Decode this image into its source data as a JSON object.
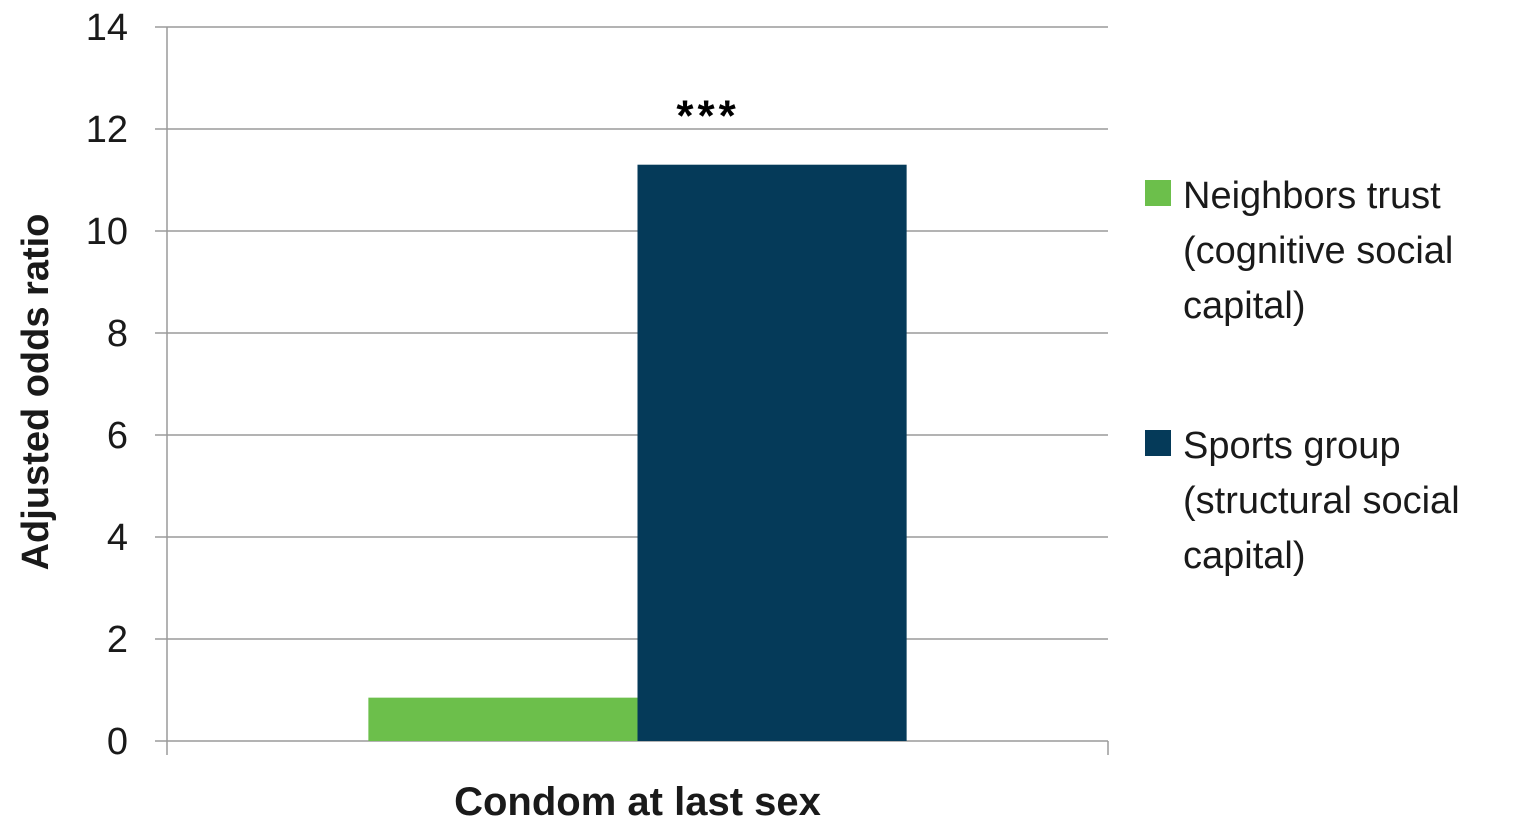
{
  "chart_data": {
    "type": "bar",
    "categories": [
      "Condom at last sex"
    ],
    "series": [
      {
        "name": [
          "Neighbors trust",
          "(cognitive social",
          "capital)"
        ],
        "values": [
          0.85
        ],
        "color": "#6cbf4b"
      },
      {
        "name": [
          "Sports group",
          "(structural social",
          "capital)"
        ],
        "values": [
          11.3
        ],
        "color": "#053a59"
      }
    ],
    "annotations": [
      {
        "text": "***",
        "category": "Condom at last sex",
        "series_index": 1
      }
    ],
    "ylabel": "Adjusted odds ratio",
    "xlabel": "",
    "ylim": [
      0,
      14
    ],
    "yticks": [
      "0",
      "2",
      "4",
      "6",
      "8",
      "10",
      "12",
      "14"
    ],
    "grid": true,
    "grid_color": "#9a9a9a",
    "legend": "right"
  }
}
